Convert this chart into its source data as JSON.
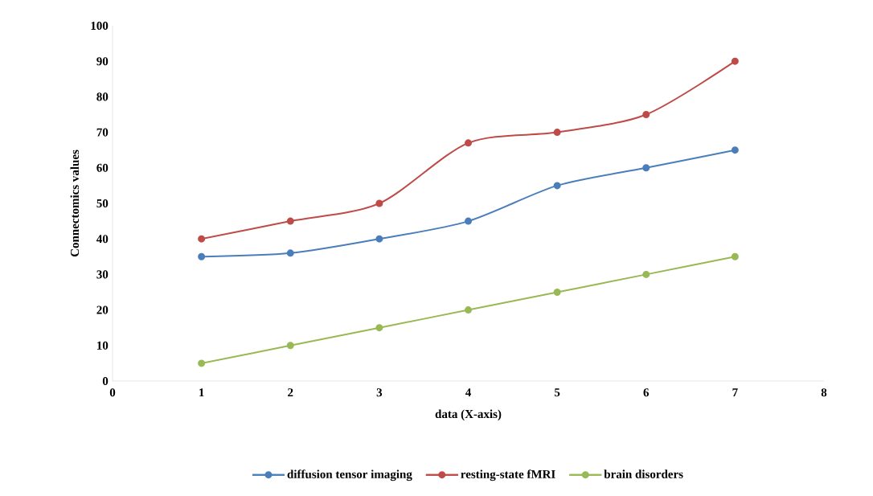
{
  "chart_data": {
    "type": "line",
    "xlabel": "data (X-axis)",
    "ylabel": "Connectomics values",
    "x": [
      1,
      2,
      3,
      4,
      5,
      6,
      7
    ],
    "series": [
      {
        "name": "diffusion tensor imaging",
        "color": "#4a7ebb",
        "values": [
          35,
          36,
          40,
          45,
          55,
          60,
          65
        ]
      },
      {
        "name": "resting-state fMRI",
        "color": "#be4b48",
        "values": [
          40,
          45,
          50,
          67,
          70,
          75,
          90
        ]
      },
      {
        "name": "brain disorders",
        "color": "#98b954",
        "values": [
          5,
          10,
          15,
          20,
          25,
          30,
          35
        ]
      }
    ],
    "xlim": [
      0,
      8
    ],
    "xticks": [
      0,
      1,
      2,
      3,
      4,
      5,
      6,
      7,
      8
    ],
    "ylim": [
      0,
      100
    ],
    "yticks": [
      0,
      10,
      20,
      30,
      40,
      50,
      60,
      70,
      80,
      90,
      100
    ],
    "legend": "bottom",
    "marker": "circle",
    "line_style": "solid"
  }
}
